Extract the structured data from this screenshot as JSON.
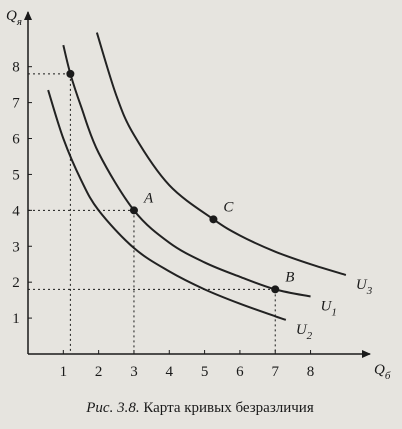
{
  "chart_data": {
    "type": "line",
    "ylabel": "Q",
    "ylabel_sub": "я",
    "xlabel": "Q",
    "xlabel_sub": "б",
    "xlim": [
      0,
      9.4
    ],
    "ylim": [
      0,
      9.3
    ],
    "xticks": [
      1,
      2,
      3,
      4,
      5,
      6,
      7,
      8
    ],
    "yticks": [
      1,
      2,
      3,
      4,
      5,
      6,
      7,
      8
    ],
    "color": "#222222",
    "series": [
      {
        "name": "U",
        "name_sub": "1",
        "x": [
          1.0,
          1.2,
          1.5,
          2,
          3,
          4,
          5,
          6,
          7,
          8
        ],
        "values": [
          8.6,
          7.8,
          6.9,
          5.6,
          4.0,
          3.1,
          2.55,
          2.15,
          1.8,
          1.6
        ]
      },
      {
        "name": "U",
        "name_sub": "2",
        "x": [
          0.57,
          1,
          1.5,
          2,
          3,
          4,
          5,
          6,
          7,
          7.3
        ],
        "values": [
          7.35,
          6.0,
          4.85,
          4.0,
          2.95,
          2.3,
          1.8,
          1.4,
          1.05,
          0.95
        ]
      },
      {
        "name": "U",
        "name_sub": "3",
        "x": [
          1.95,
          2.5,
          3,
          4,
          5.25,
          6,
          7,
          8,
          9
        ],
        "values": [
          8.95,
          7.2,
          6.1,
          4.7,
          3.75,
          3.3,
          2.85,
          2.5,
          2.2
        ]
      }
    ],
    "points": [
      {
        "label": null,
        "x": 1.2,
        "y": 7.8,
        "guides": true
      },
      {
        "label": "A",
        "x": 3,
        "y": 4,
        "guides": true
      },
      {
        "label": "B",
        "x": 7,
        "y": 1.8,
        "guides": true
      },
      {
        "label": "C",
        "x": 5.25,
        "y": 3.75,
        "guides": false
      }
    ],
    "caption_prefix": "Рис. 3.8.",
    "caption": "Карта кривых безразличия"
  }
}
